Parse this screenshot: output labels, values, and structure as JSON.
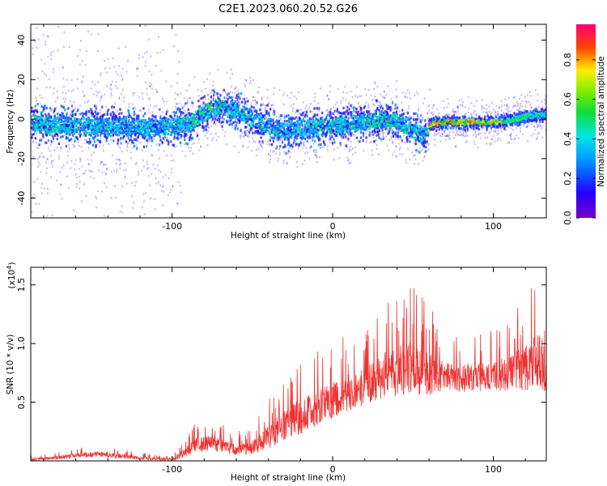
{
  "figure": {
    "title": "C2E1.2023.060.20.52.G26"
  },
  "chart_data": [
    {
      "type": "heatmap",
      "title": "C2E1.2023.060.20.52.G26",
      "xlabel": "Height of straight line (km)",
      "ylabel": "Frequency (Hz)",
      "xlim": [
        -188,
        133
      ],
      "ylim": [
        -50,
        48
      ],
      "xticks": [
        -100,
        0,
        100
      ],
      "yticks": [
        -40,
        -20,
        0,
        20,
        40
      ],
      "colorbar": {
        "label": "Normalized spectral amplitude",
        "range": [
          0,
          0.98
        ],
        "ticks": [
          0.0,
          0.2,
          0.4,
          0.6,
          0.8
        ],
        "colormap": "rainbow (purple-blue-cyan-green-yellow-red-magenta)"
      },
      "ridge": {
        "description": "dominant frequency ridge near 0 Hz",
        "x": [
          -188,
          -150,
          -110,
          -100,
          -90,
          -80,
          -70,
          -60,
          -50,
          -40,
          -30,
          -20,
          -10,
          0,
          10,
          20,
          30,
          40,
          50,
          58,
          60,
          70,
          80,
          90,
          100,
          110,
          120,
          133
        ],
        "frequency": [
          -2,
          -3,
          -4,
          -3,
          -2,
          4,
          6,
          5,
          0,
          -3,
          -6,
          -4,
          -4,
          -3,
          -2,
          -1,
          0,
          -1,
          -5,
          -8,
          -2,
          -1,
          -1,
          -1,
          -1,
          0,
          2,
          3
        ],
        "peak_amplitude": [
          0.5,
          0.45,
          0.45,
          0.5,
          0.5,
          0.55,
          0.55,
          0.5,
          0.45,
          0.45,
          0.45,
          0.45,
          0.5,
          0.5,
          0.5,
          0.5,
          0.55,
          0.5,
          0.5,
          0.5,
          0.9,
          0.9,
          0.85,
          0.85,
          0.85,
          0.6,
          0.55,
          0.5
        ]
      }
    },
    {
      "type": "line",
      "xlabel": "Height of straight line (km)",
      "ylabel": "SNR (10 * v/v)",
      "ylabel_scale": "(x10",
      "ylabel_scale_exp": "4",
      "ylabel_scale_close": ")",
      "xlim": [
        -188,
        133
      ],
      "ylim": [
        0,
        1.65
      ],
      "xticks": [
        -100,
        0,
        100
      ],
      "yticks": [
        0.5,
        1.0,
        1.5
      ],
      "ytick_labels": [
        "0.5",
        "1.0",
        "1.5"
      ],
      "color": "#ee3333",
      "envelope": {
        "x": [
          -188,
          -175,
          -160,
          -145,
          -135,
          -120,
          -100,
          -95,
          -85,
          -75,
          -60,
          -50,
          -40,
          -30,
          -22,
          -15,
          -10,
          -5,
          0,
          10,
          20,
          30,
          40,
          48,
          55,
          60,
          70,
          80,
          90,
          100,
          110,
          120,
          125,
          130,
          133
        ],
        "baseline": [
          0.01,
          0.02,
          0.04,
          0.05,
          0.04,
          0.02,
          0.01,
          0.04,
          0.12,
          0.14,
          0.08,
          0.1,
          0.18,
          0.28,
          0.34,
          0.38,
          0.42,
          0.45,
          0.48,
          0.55,
          0.6,
          0.68,
          0.72,
          0.75,
          0.73,
          0.7,
          0.7,
          0.68,
          0.69,
          0.7,
          0.72,
          0.75,
          0.78,
          0.8,
          0.78
        ],
        "spread": [
          0.03,
          0.04,
          0.06,
          0.08,
          0.06,
          0.04,
          0.03,
          0.08,
          0.18,
          0.2,
          0.14,
          0.16,
          0.3,
          0.35,
          0.45,
          0.45,
          0.45,
          0.45,
          0.45,
          0.45,
          0.45,
          0.55,
          0.6,
          0.65,
          0.6,
          0.55,
          0.35,
          0.35,
          0.35,
          0.38,
          0.45,
          0.55,
          0.65,
          0.75,
          0.8
        ]
      }
    }
  ]
}
